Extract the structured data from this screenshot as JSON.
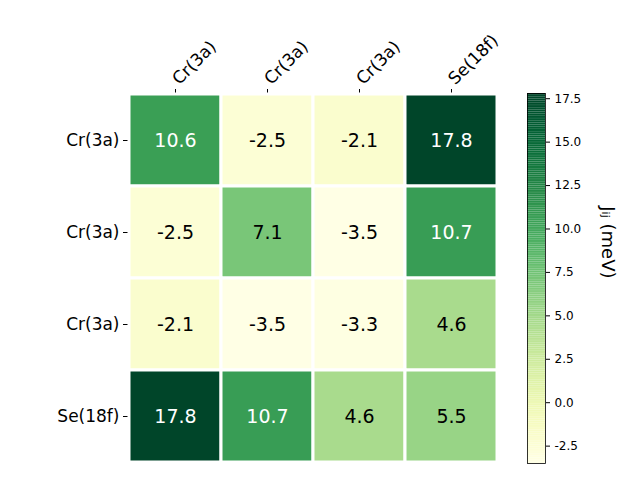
{
  "chart_data": {
    "type": "heatmap",
    "x_categories": [
      "Cr(3a)",
      "Cr(3a)",
      "Cr(3a)",
      "Se(18f)"
    ],
    "y_categories": [
      "Cr(3a)",
      "Cr(3a)",
      "Cr(3a)",
      "Se(18f)"
    ],
    "values": [
      [
        10.6,
        -2.5,
        -2.1,
        17.8
      ],
      [
        -2.5,
        7.1,
        -3.5,
        10.7
      ],
      [
        -2.1,
        -3.5,
        -3.3,
        4.6
      ],
      [
        17.8,
        10.7,
        4.6,
        5.5
      ]
    ],
    "data_labels": true,
    "color": "YlGn",
    "colorbar": {
      "label": "Jᵢⱼ (meV)",
      "range": [
        -3.5,
        17.8
      ],
      "ticks": [
        -2.5,
        {
          "value": 0,
          "label": "0.0"
        },
        2.5,
        {
          "value": 5,
          "label": "5.0"
        },
        7.5,
        {
          "value": 10,
          "label": "10.0"
        },
        12.5,
        {
          "value": 15,
          "label": "15.0"
        },
        17.5
      ]
    }
  }
}
